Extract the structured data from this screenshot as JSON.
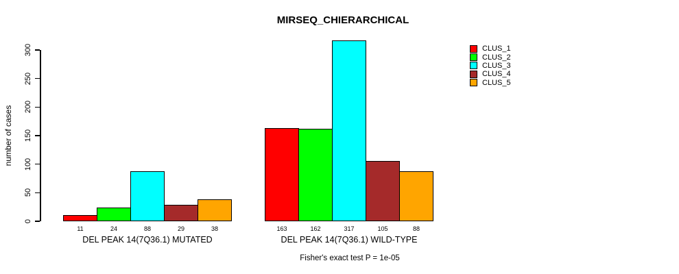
{
  "title": "MIRSEQ_CHIERARCHICAL",
  "ylabel": "number of cases",
  "footer": "Fisher's exact test P = 1e-05",
  "chart_data": {
    "type": "bar",
    "title": "MIRSEQ_CHIERARCHICAL",
    "xlabel": "",
    "ylabel": "number of cases",
    "yticks": [
      0,
      50,
      100,
      150,
      200,
      250,
      300
    ],
    "ylim": [
      0,
      317
    ],
    "grid": false,
    "legend_position": "top-right",
    "categories": [
      "DEL PEAK 14(7Q36.1) MUTATED",
      "DEL PEAK 14(7Q36.1) WILD-TYPE"
    ],
    "series": [
      {
        "name": "CLUS_1",
        "color": "#FF0000",
        "values": [
          11,
          163
        ]
      },
      {
        "name": "CLUS_2",
        "color": "#00FF00",
        "values": [
          24,
          162
        ]
      },
      {
        "name": "CLUS_3",
        "color": "#00FFFF",
        "values": [
          88,
          317
        ]
      },
      {
        "name": "CLUS_4",
        "color": "#A52A2A",
        "values": [
          29,
          105
        ]
      },
      {
        "name": "CLUS_5",
        "color": "#FFA500",
        "values": [
          38,
          88
        ]
      }
    ],
    "groups": [
      {
        "label": "DEL PEAK 14(7Q36.1) MUTATED",
        "values": [
          11,
          24,
          88,
          29,
          38
        ]
      },
      {
        "label": "DEL PEAK 14(7Q36.1) WILD-TYPE",
        "values": [
          163,
          162,
          317,
          105,
          88
        ]
      }
    ],
    "legend": [
      {
        "label": "CLUS_1",
        "color": "#FF0000"
      },
      {
        "label": "CLUS_2",
        "color": "#00FF00"
      },
      {
        "label": "CLUS_3",
        "color": "#00FFFF"
      },
      {
        "label": "CLUS_4",
        "color": "#A52A2A"
      },
      {
        "label": "CLUS_5",
        "color": "#FFA500"
      }
    ],
    "annotation": "Fisher's exact test P = 1e-05",
    "bar_value_labels_shown": true
  }
}
